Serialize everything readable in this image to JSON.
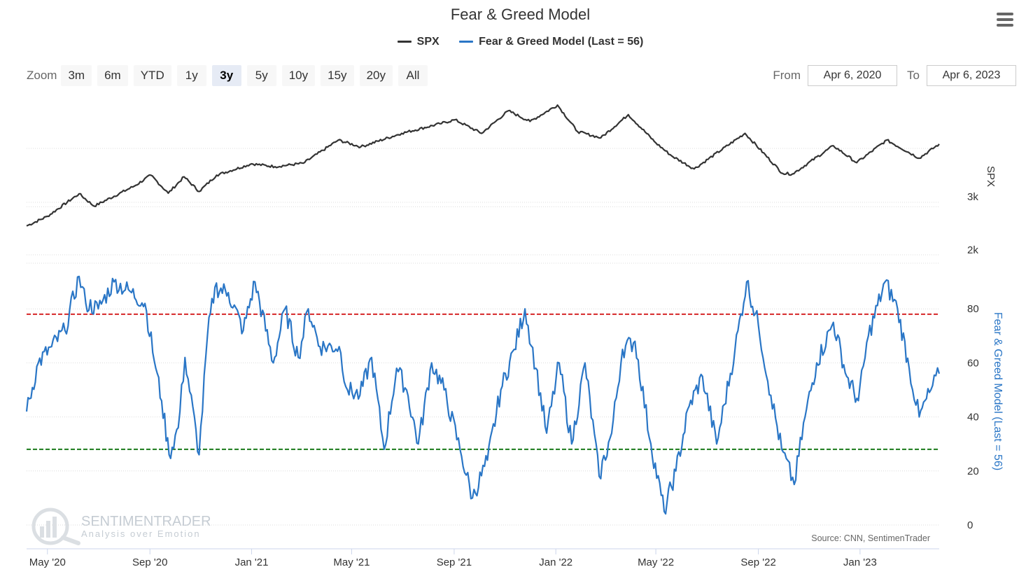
{
  "title": "Fear & Greed Model",
  "legend": [
    {
      "label": "SPX",
      "color": "#333333"
    },
    {
      "label": "Fear & Greed Model (Last = 56)",
      "color": "#2a76c6"
    }
  ],
  "zoom": {
    "label": "Zoom",
    "buttons": [
      "3m",
      "6m",
      "YTD",
      "1y",
      "3y",
      "5y",
      "10y",
      "15y",
      "20y",
      "All"
    ],
    "selected": "3y"
  },
  "range": {
    "from_label": "From",
    "from_value": "Apr 6, 2020",
    "to_label": "To",
    "to_value": "Apr 6, 2023"
  },
  "watermark": {
    "name": "SENTIMENTRADER",
    "tagline": "Analysis over Emotion"
  },
  "source": "Source: CNN, SentimenTrader",
  "chart_data": {
    "type": "line",
    "x_tick_labels": [
      "May '20",
      "Sep '20",
      "Jan '21",
      "May '21",
      "Sep '21",
      "Jan '22",
      "May '22",
      "Sep '22",
      "Jan '23"
    ],
    "x_range": [
      "2020-04-06",
      "2023-04-06"
    ],
    "axes": {
      "spx": {
        "label": "SPX",
        "ticks": [
          "2k",
          "3k"
        ],
        "range": [
          2000,
          5000
        ]
      },
      "fng": {
        "label": "Fear & Greed Model (Last = 56)",
        "ticks": [
          "0",
          "20",
          "40",
          "60",
          "80"
        ],
        "range": [
          0,
          100
        ]
      }
    },
    "reference_lines": [
      {
        "axis": "fng",
        "value": 78,
        "color": "#d62728",
        "style": "dashed"
      },
      {
        "axis": "fng",
        "value": 28,
        "color": "#1b7a1b",
        "style": "dashed"
      }
    ],
    "series": [
      {
        "name": "SPX",
        "axis": "spx",
        "color": "#333333",
        "points": [
          [
            "2020-04-06",
            2660
          ],
          [
            "2020-05-01",
            2830
          ],
          [
            "2020-06-08",
            3230
          ],
          [
            "2020-06-26",
            3010
          ],
          [
            "2020-08-15",
            3380
          ],
          [
            "2020-09-02",
            3560
          ],
          [
            "2020-09-23",
            3240
          ],
          [
            "2020-10-12",
            3530
          ],
          [
            "2020-10-30",
            3270
          ],
          [
            "2020-11-20",
            3560
          ],
          [
            "2021-01-01",
            3760
          ],
          [
            "2021-01-29",
            3710
          ],
          [
            "2021-03-04",
            3770
          ],
          [
            "2021-04-15",
            4180
          ],
          [
            "2021-05-12",
            4060
          ],
          [
            "2021-06-30",
            4300
          ],
          [
            "2021-08-15",
            4470
          ],
          [
            "2021-09-02",
            4540
          ],
          [
            "2021-10-04",
            4300
          ],
          [
            "2021-11-05",
            4700
          ],
          [
            "2021-12-01",
            4510
          ],
          [
            "2022-01-03",
            4800
          ],
          [
            "2022-01-27",
            4330
          ],
          [
            "2022-02-24",
            4220
          ],
          [
            "2022-03-29",
            4630
          ],
          [
            "2022-05-01",
            4130
          ],
          [
            "2022-05-20",
            3900
          ],
          [
            "2022-06-16",
            3670
          ],
          [
            "2022-08-16",
            4300
          ],
          [
            "2022-09-30",
            3590
          ],
          [
            "2022-10-12",
            3580
          ],
          [
            "2022-11-30",
            4080
          ],
          [
            "2022-12-28",
            3780
          ],
          [
            "2023-02-02",
            4180
          ],
          [
            "2023-03-13",
            3860
          ],
          [
            "2023-04-06",
            4110
          ]
        ]
      },
      {
        "name": "Fear & Greed Model (Last = 56)",
        "axis": "fng",
        "color": "#2a76c6",
        "points": [
          [
            "2020-04-06",
            42
          ],
          [
            "2020-04-20",
            60
          ],
          [
            "2020-05-06",
            66
          ],
          [
            "2020-05-22",
            72
          ],
          [
            "2020-06-08",
            92
          ],
          [
            "2020-06-16",
            82
          ],
          [
            "2020-07-01",
            80
          ],
          [
            "2020-07-20",
            90
          ],
          [
            "2020-08-10",
            86
          ],
          [
            "2020-08-26",
            82
          ],
          [
            "2020-09-08",
            58
          ],
          [
            "2020-09-15",
            46
          ],
          [
            "2020-09-24",
            26
          ],
          [
            "2020-10-05",
            36
          ],
          [
            "2020-10-13",
            62
          ],
          [
            "2020-10-30",
            26
          ],
          [
            "2020-11-09",
            70
          ],
          [
            "2020-11-18",
            88
          ],
          [
            "2020-12-04",
            86
          ],
          [
            "2020-12-22",
            72
          ],
          [
            "2021-01-05",
            90
          ],
          [
            "2021-01-27",
            60
          ],
          [
            "2021-02-10",
            80
          ],
          [
            "2021-02-26",
            62
          ],
          [
            "2021-03-10",
            80
          ],
          [
            "2021-03-24",
            66
          ],
          [
            "2021-04-16",
            66
          ],
          [
            "2021-04-26",
            50
          ],
          [
            "2021-05-11",
            48
          ],
          [
            "2021-05-25",
            62
          ],
          [
            "2021-06-09",
            28
          ],
          [
            "2021-06-24",
            58
          ],
          [
            "2021-07-06",
            50
          ],
          [
            "2021-07-20",
            30
          ],
          [
            "2021-08-05",
            60
          ],
          [
            "2021-08-20",
            50
          ],
          [
            "2021-09-08",
            28
          ],
          [
            "2021-09-23",
            10
          ],
          [
            "2021-10-11",
            24
          ],
          [
            "2021-10-27",
            50
          ],
          [
            "2021-11-12",
            65
          ],
          [
            "2021-11-25",
            80
          ],
          [
            "2021-12-08",
            58
          ],
          [
            "2021-12-21",
            34
          ],
          [
            "2022-01-05",
            60
          ],
          [
            "2022-01-20",
            30
          ],
          [
            "2022-02-05",
            60
          ],
          [
            "2022-02-22",
            18
          ],
          [
            "2022-03-09",
            34
          ],
          [
            "2022-03-22",
            65
          ],
          [
            "2022-04-06",
            68
          ],
          [
            "2022-04-25",
            30
          ],
          [
            "2022-05-11",
            5
          ],
          [
            "2022-05-25",
            20
          ],
          [
            "2022-06-10",
            44
          ],
          [
            "2022-06-26",
            55
          ],
          [
            "2022-07-13",
            30
          ],
          [
            "2022-08-04",
            65
          ],
          [
            "2022-08-18",
            90
          ],
          [
            "2022-09-01",
            74
          ],
          [
            "2022-09-16",
            48
          ],
          [
            "2022-09-29",
            28
          ],
          [
            "2022-10-14",
            15
          ],
          [
            "2022-10-27",
            40
          ],
          [
            "2022-11-10",
            60
          ],
          [
            "2022-11-30",
            75
          ],
          [
            "2022-12-16",
            55
          ],
          [
            "2022-12-30",
            46
          ],
          [
            "2023-01-11",
            70
          ],
          [
            "2023-01-31",
            90
          ],
          [
            "2023-02-15",
            80
          ],
          [
            "2023-03-01",
            58
          ],
          [
            "2023-03-13",
            40
          ],
          [
            "2023-03-27",
            50
          ],
          [
            "2023-04-06",
            56
          ]
        ]
      }
    ]
  }
}
